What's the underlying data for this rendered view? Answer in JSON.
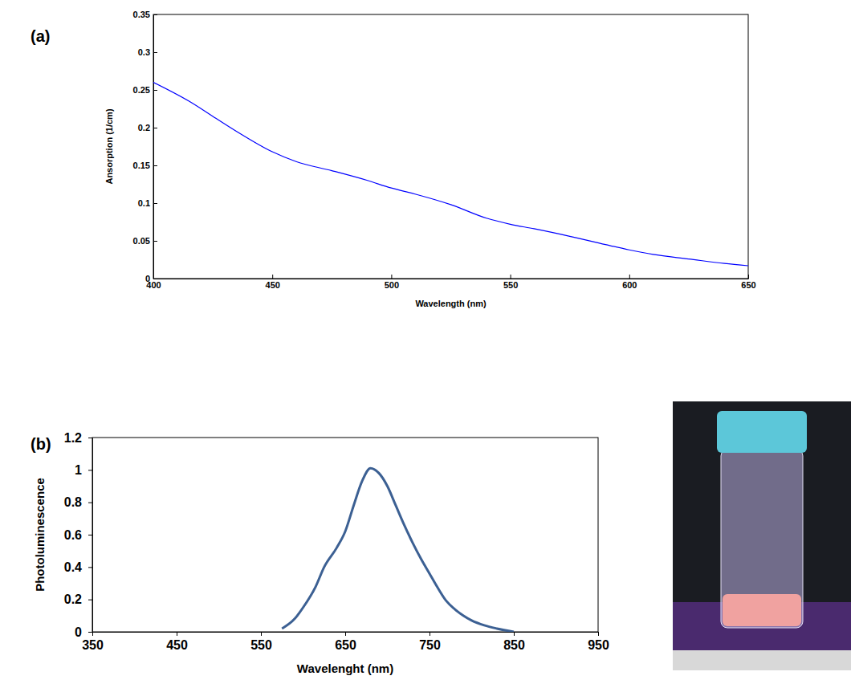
{
  "chart_data": [
    {
      "type": "line",
      "panel_label": "(a)",
      "x_label": "Wavelength (nm)",
      "y_label": "Ansorption (1/cm)",
      "color": "#0000ff",
      "x": [
        400,
        415,
        425,
        435,
        450,
        460,
        475,
        490,
        500,
        510,
        525,
        540,
        550,
        560,
        575,
        590,
        600,
        610,
        625,
        640,
        650
      ],
      "values": [
        0.26,
        0.235,
        0.215,
        0.195,
        0.168,
        0.155,
        0.143,
        0.13,
        0.12,
        0.112,
        0.098,
        0.08,
        0.072,
        0.066,
        0.056,
        0.045,
        0.038,
        0.032,
        0.026,
        0.02,
        0.017
      ],
      "xlim": [
        400,
        650
      ],
      "xticks": [
        400,
        450,
        500,
        550,
        600,
        650
      ],
      "ylim": [
        0,
        0.35
      ],
      "yticks": [
        0,
        0.05,
        0.1,
        0.15,
        0.2,
        0.25,
        0.3,
        0.35
      ]
    },
    {
      "type": "line",
      "panel_label": "(b)",
      "x_label": "Wavelenght (nm)",
      "y_label": "Photoluminescence",
      "color": "#3c6093",
      "x": [
        575,
        590,
        600,
        615,
        625,
        640,
        650,
        660,
        670,
        680,
        690,
        700,
        710,
        720,
        730,
        740,
        750,
        760,
        770,
        780,
        790,
        800,
        815,
        830,
        850
      ],
      "values": [
        0.02,
        0.08,
        0.15,
        0.28,
        0.4,
        0.52,
        0.62,
        0.78,
        0.93,
        1.01,
        0.98,
        0.9,
        0.78,
        0.66,
        0.55,
        0.45,
        0.36,
        0.27,
        0.19,
        0.14,
        0.1,
        0.07,
        0.04,
        0.02,
        0
      ],
      "xlim": [
        350,
        950
      ],
      "xticks": [
        350,
        450,
        550,
        650,
        750,
        850,
        950
      ],
      "ylim": [
        0,
        1.2
      ],
      "yticks": [
        0,
        0.2,
        0.4,
        0.6,
        0.8,
        1,
        1.2
      ]
    }
  ]
}
